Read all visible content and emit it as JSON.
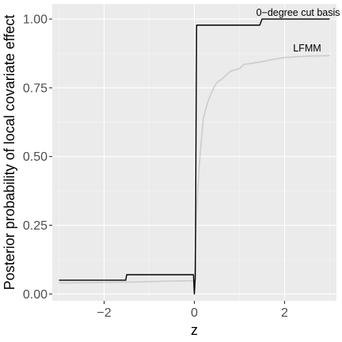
{
  "chart_data": {
    "type": "line",
    "xlabel": "z",
    "ylabel": "Posterior probability of local covariate effect",
    "xlim": [
      -3.15,
      3.15
    ],
    "ylim": [
      -0.025,
      1.055
    ],
    "x_ticks": [
      -2,
      0,
      2
    ],
    "x_tick_labels": [
      "−2",
      "0",
      "2"
    ],
    "y_ticks": [
      0.0,
      0.25,
      0.5,
      0.75,
      1.0
    ],
    "y_tick_labels": [
      "0.00",
      "0.25",
      "0.50",
      "0.75",
      "1.00"
    ],
    "grid": true,
    "legend": "none",
    "background": "#ebebeb",
    "series": [
      {
        "name": "0−degree cut basis",
        "color": "#000000",
        "label_at": [
          2.3,
          1.0
        ],
        "points": [
          [
            -3.0,
            0.05
          ],
          [
            -1.52,
            0.05
          ],
          [
            -1.5,
            0.07
          ],
          [
            -0.02,
            0.07
          ],
          [
            0.0,
            0.0
          ],
          [
            0.02,
            0.06
          ],
          [
            0.05,
            0.978
          ],
          [
            1.45,
            0.978
          ],
          [
            1.5,
            1.0
          ],
          [
            3.0,
            1.0
          ]
        ]
      },
      {
        "name": "LFMM",
        "color": "#cccccc",
        "label_at": [
          2.5,
          0.87
        ],
        "points": [
          [
            -3.0,
            0.04
          ],
          [
            -1.5,
            0.043
          ],
          [
            -1.0,
            0.045
          ],
          [
            -0.5,
            0.047
          ],
          [
            -0.02,
            0.048
          ],
          [
            0.0,
            0.05
          ],
          [
            0.05,
            0.3
          ],
          [
            0.1,
            0.45
          ],
          [
            0.15,
            0.55
          ],
          [
            0.2,
            0.64
          ],
          [
            0.3,
            0.7
          ],
          [
            0.4,
            0.74
          ],
          [
            0.5,
            0.77
          ],
          [
            0.6,
            0.78
          ],
          [
            0.7,
            0.795
          ],
          [
            0.8,
            0.81
          ],
          [
            1.0,
            0.82
          ],
          [
            1.1,
            0.835
          ],
          [
            1.3,
            0.84
          ],
          [
            1.5,
            0.845
          ],
          [
            1.7,
            0.852
          ],
          [
            2.0,
            0.86
          ],
          [
            2.5,
            0.865
          ],
          [
            3.0,
            0.867
          ]
        ]
      }
    ]
  }
}
